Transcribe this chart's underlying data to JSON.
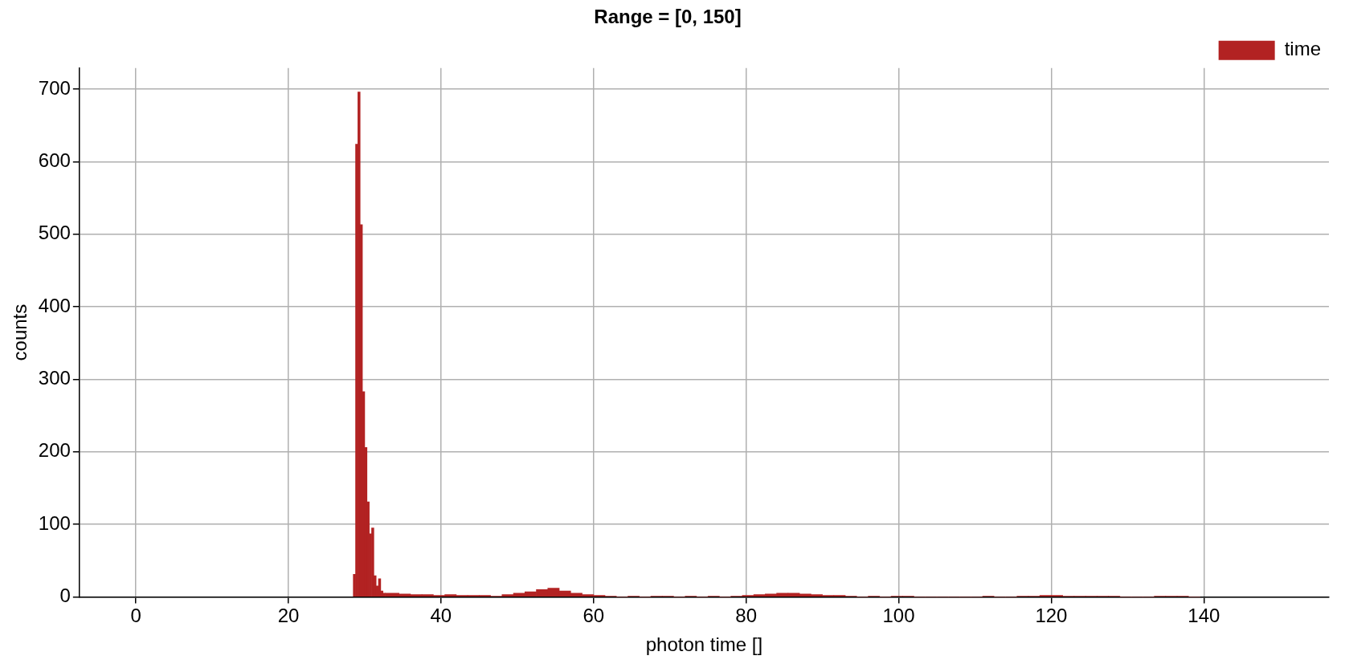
{
  "chart_data": {
    "type": "histogram",
    "title": "Range = [0, 150]",
    "xlabel": "photon time []",
    "ylabel": "counts",
    "bins": [
      28.5,
      28.8,
      29.1,
      29.4,
      29.7,
      30,
      30.3,
      30.6,
      30.9,
      31.2,
      31.5,
      31.8,
      32.1,
      32.4,
      32.7,
      34.5,
      36,
      37.5,
      39,
      40.5,
      42,
      43.5,
      45,
      46.5,
      48,
      49.5,
      51,
      52.5,
      54,
      55.5,
      57,
      58.5,
      60,
      61.5,
      63,
      64.5,
      66,
      67.5,
      69,
      70.5,
      72,
      73.5,
      75,
      76.5,
      78,
      79.5,
      81,
      82.5,
      84,
      85.5,
      87,
      88.5,
      90,
      91.5,
      93,
      94.5,
      96,
      97.5,
      99,
      100.5,
      102,
      103.5,
      105,
      106.5,
      108,
      109.5,
      111,
      112.5,
      114,
      115.5,
      117,
      118.5,
      120,
      121.5,
      123,
      124.5,
      126,
      127.5,
      129,
      130.5,
      132,
      133.5,
      135,
      136.5,
      138,
      139.5
    ],
    "series": [
      {
        "name": "time",
        "color": "#b22222",
        "values": [
          31,
          624,
          696,
          513,
          283,
          206,
          131,
          87,
          95,
          29,
          15,
          25,
          8,
          5,
          5,
          4,
          3,
          3,
          2,
          3,
          2,
          2,
          2,
          1,
          3,
          5,
          7,
          10,
          12,
          8,
          5,
          3,
          2,
          1,
          0,
          1,
          0,
          1,
          1,
          0,
          1,
          0,
          1,
          0,
          1,
          2,
          3,
          4,
          5,
          5,
          4,
          3,
          2,
          2,
          1,
          0,
          1,
          0,
          1,
          1,
          0,
          0,
          0,
          0,
          0,
          0,
          1,
          0,
          0,
          1,
          1,
          2,
          2,
          1,
          1,
          1,
          1,
          1,
          0,
          0,
          0,
          1,
          1,
          1,
          0
        ]
      }
    ],
    "xlim": [
      -7.4,
      156.4
    ],
    "ylim": [
      0,
      729
    ],
    "xticks": [
      0,
      20,
      40,
      60,
      80,
      100,
      120,
      140
    ],
    "yticks": [
      0,
      100,
      200,
      300,
      400,
      500,
      600,
      700
    ],
    "grid": true,
    "legend": "top right"
  }
}
